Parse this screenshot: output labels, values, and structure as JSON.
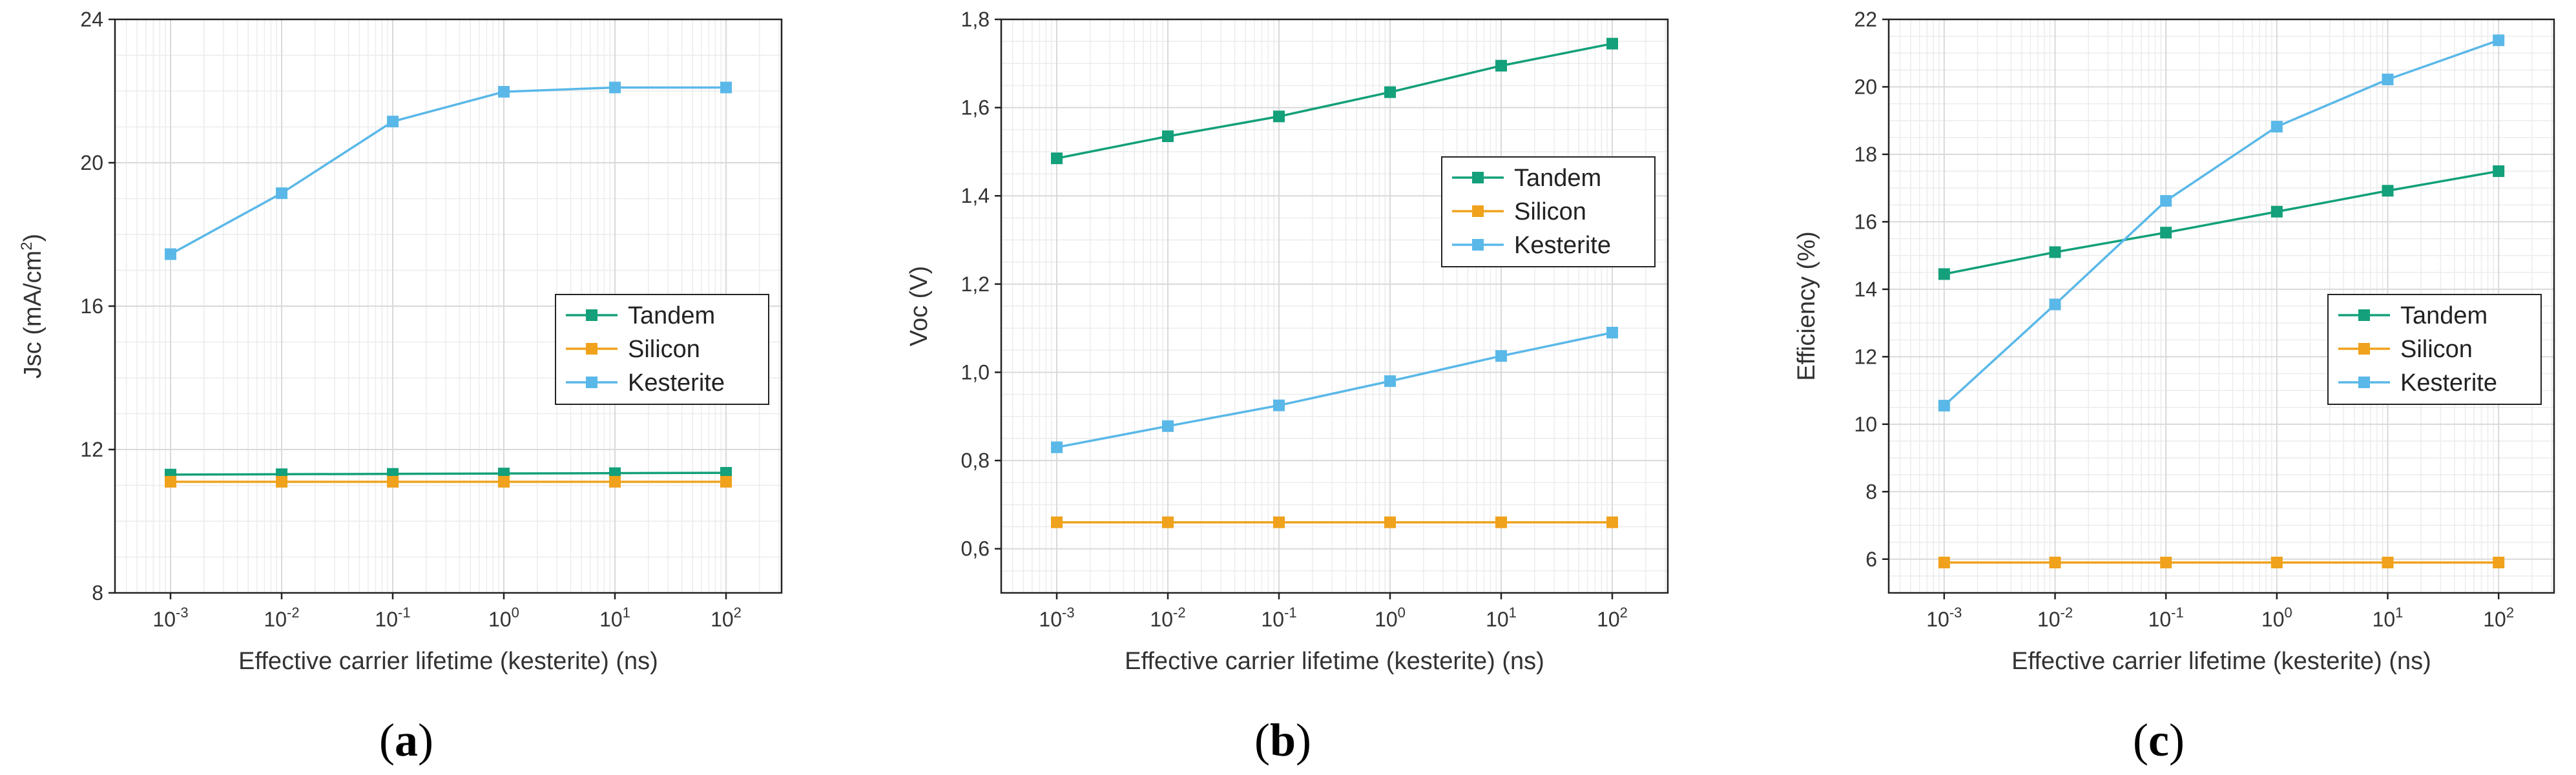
{
  "colors": {
    "Tandem": "#13a07a",
    "Silicon": "#f0a21c",
    "Kesterite": "#5ab8e8",
    "grid": "#d9d9d9",
    "axis": "#222222"
  },
  "chart_data": [
    {
      "type": "line",
      "panel_label": "(a)",
      "panel_letter": "a",
      "xlabel": "Effective carrier lifetime (kesterite) (ns)",
      "ylabel": "Jsc (mA/cm²)",
      "ylabel_main": "Jsc (mA/cm",
      "ylabel_sup": "2",
      "ylabel_close": ")",
      "x_scale": "log",
      "x": [
        0.001,
        0.01,
        0.1,
        1,
        10,
        100
      ],
      "x_ticks": [
        {
          "base": "10",
          "exp": "-3"
        },
        {
          "base": "10",
          "exp": "-2"
        },
        {
          "base": "10",
          "exp": "-1"
        },
        {
          "base": "10",
          "exp": "0"
        },
        {
          "base": "10",
          "exp": "1"
        },
        {
          "base": "10",
          "exp": "2"
        }
      ],
      "xlim_log10": [
        -3.5,
        2.5
      ],
      "ylim": [
        8,
        24
      ],
      "y_ticks": [
        8,
        12,
        16,
        20,
        24
      ],
      "y_tick_labels": [
        "8",
        "12",
        "16",
        "20",
        "24"
      ],
      "y_minor_step": 1,
      "legend": {
        "position": "center-right",
        "entries": [
          "Tandem",
          "Silicon",
          "Kesterite"
        ]
      },
      "series": [
        {
          "name": "Tandem",
          "values": [
            11.3,
            11.31,
            11.32,
            11.33,
            11.34,
            11.35
          ]
        },
        {
          "name": "Silicon",
          "values": [
            11.1,
            11.1,
            11.1,
            11.1,
            11.1,
            11.1
          ]
        },
        {
          "name": "Kesterite",
          "values": [
            17.45,
            19.15,
            21.15,
            21.98,
            22.1,
            22.1
          ]
        }
      ]
    },
    {
      "type": "line",
      "panel_label": "(b)",
      "panel_letter": "b",
      "xlabel": "Effective carrier lifetime (kesterite) (ns)",
      "ylabel": "Voc (V)",
      "ylabel_main": "Voc (V)",
      "ylabel_sup": "",
      "ylabel_close": "",
      "x_scale": "log",
      "x": [
        0.001,
        0.01,
        0.1,
        1,
        10,
        100
      ],
      "x_ticks": [
        {
          "base": "10",
          "exp": "-3"
        },
        {
          "base": "10",
          "exp": "-2"
        },
        {
          "base": "10",
          "exp": "-1"
        },
        {
          "base": "10",
          "exp": "0"
        },
        {
          "base": "10",
          "exp": "1"
        },
        {
          "base": "10",
          "exp": "2"
        }
      ],
      "xlim_log10": [
        -3.5,
        2.5
      ],
      "ylim": [
        0.5,
        1.8
      ],
      "y_ticks": [
        0.6,
        0.8,
        1.0,
        1.2,
        1.4,
        1.6,
        1.8
      ],
      "y_tick_labels": [
        "0,6",
        "0,8",
        "1,0",
        "1,2",
        "1,4",
        "1,6",
        "1,8"
      ],
      "y_minor_step": 0.05,
      "legend": {
        "position": "upper-right",
        "entries": [
          "Tandem",
          "Silicon",
          "Kesterite"
        ]
      },
      "series": [
        {
          "name": "Tandem",
          "values": [
            1.485,
            1.535,
            1.58,
            1.635,
            1.695,
            1.745
          ]
        },
        {
          "name": "Silicon",
          "values": [
            0.66,
            0.66,
            0.66,
            0.66,
            0.66,
            0.66
          ]
        },
        {
          "name": "Kesterite",
          "values": [
            0.83,
            0.878,
            0.925,
            0.98,
            1.037,
            1.09
          ]
        }
      ]
    },
    {
      "type": "line",
      "panel_label": "(c)",
      "panel_letter": "c",
      "xlabel": "Effective carrier lifetime (kesterite) (ns)",
      "ylabel": "Efficiency (%)",
      "ylabel_main": "Efficiency (%)",
      "ylabel_sup": "",
      "ylabel_close": "",
      "x_scale": "log",
      "x": [
        0.001,
        0.01,
        0.1,
        1,
        10,
        100
      ],
      "x_ticks": [
        {
          "base": "10",
          "exp": "-3"
        },
        {
          "base": "10",
          "exp": "-2"
        },
        {
          "base": "10",
          "exp": "-1"
        },
        {
          "base": "10",
          "exp": "0"
        },
        {
          "base": "10",
          "exp": "1"
        },
        {
          "base": "10",
          "exp": "2"
        }
      ],
      "xlim_log10": [
        -3.5,
        2.5
      ],
      "ylim": [
        5,
        22
      ],
      "y_ticks": [
        6,
        8,
        10,
        12,
        14,
        16,
        18,
        20,
        22
      ],
      "y_tick_labels": [
        "6",
        "8",
        "10",
        "12",
        "14",
        "16",
        "18",
        "20",
        "22"
      ],
      "y_minor_step": 0.5,
      "legend": {
        "position": "center-right",
        "entries": [
          "Tandem",
          "Silicon",
          "Kesterite"
        ]
      },
      "series": [
        {
          "name": "Tandem",
          "values": [
            14.45,
            15.1,
            15.68,
            16.3,
            16.92,
            17.5
          ]
        },
        {
          "name": "Silicon",
          "values": [
            5.9,
            5.9,
            5.9,
            5.9,
            5.9,
            5.9
          ]
        },
        {
          "name": "Kesterite",
          "values": [
            10.55,
            13.55,
            16.62,
            18.82,
            20.22,
            21.38
          ]
        }
      ]
    }
  ]
}
